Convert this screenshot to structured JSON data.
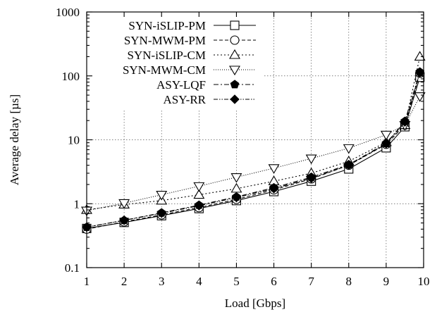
{
  "chart_data": {
    "type": "line",
    "xlabel": "Load [Gbps]",
    "ylabel": "Average delay [µs]",
    "xlim": [
      1,
      10
    ],
    "ylim": [
      0.1,
      1000
    ],
    "yscale": "log",
    "grid": true,
    "legend_position": "top-left",
    "x_ticks": [
      1,
      2,
      3,
      4,
      5,
      6,
      7,
      8,
      9,
      10
    ],
    "x_tick_labels": [
      "1",
      "2",
      "3",
      "4",
      "5",
      "6",
      "7",
      "8",
      "9",
      "10"
    ],
    "y_ticks": [
      0.1,
      1,
      10,
      100,
      1000
    ],
    "y_tick_labels": [
      "0.1",
      "1",
      "10",
      "100",
      "1000"
    ],
    "series": [
      {
        "name": "SYN-iSLIP-PM",
        "marker": "square-open",
        "dash": "solid",
        "x": [
          1,
          2,
          3,
          4,
          5,
          6,
          7,
          8,
          9,
          9.5,
          9.9
        ],
        "y": [
          0.41,
          0.51,
          0.65,
          0.84,
          1.12,
          1.55,
          2.25,
          3.5,
          7.5,
          16,
          95
        ]
      },
      {
        "name": "SYN-MWM-PM",
        "marker": "circle-open",
        "dash": "dashed",
        "x": [
          1,
          2,
          3,
          4,
          5,
          6,
          7,
          8,
          9,
          9.5,
          9.9
        ],
        "y": [
          0.4,
          0.52,
          0.67,
          0.87,
          1.17,
          1.65,
          2.45,
          4.0,
          8.5,
          17,
          110
        ]
      },
      {
        "name": "SYN-iSLIP-CM",
        "marker": "triangle-up-open",
        "dash": "dotted",
        "x": [
          1,
          2,
          3,
          4,
          5,
          6,
          7,
          8,
          9,
          9.5,
          9.9
        ],
        "y": [
          0.8,
          0.97,
          1.12,
          1.38,
          1.72,
          2.25,
          3.0,
          4.6,
          9.2,
          17,
          200
        ]
      },
      {
        "name": "SYN-MWM-CM",
        "marker": "triangle-down-open",
        "dash": "fine-dotted",
        "x": [
          1,
          2,
          3,
          4,
          5,
          6,
          7,
          8,
          9,
          9.5,
          9.9
        ],
        "y": [
          0.78,
          1.02,
          1.38,
          1.88,
          2.6,
          3.6,
          5.1,
          7.4,
          12,
          17,
          48
        ]
      },
      {
        "name": "ASY-LQF",
        "marker": "pentagon-filled",
        "dash": "dash-dot",
        "x": [
          1,
          2,
          3,
          4,
          5,
          6,
          7,
          8,
          9,
          9.5,
          9.9
        ],
        "y": [
          0.43,
          0.55,
          0.72,
          0.95,
          1.28,
          1.78,
          2.6,
          4.1,
          8.8,
          19.5,
          115
        ]
      },
      {
        "name": "ASY-RR",
        "marker": "diamond-filled",
        "dash": "dash-dot-dot",
        "x": [
          1,
          2,
          3,
          4,
          5,
          6,
          7,
          8,
          9,
          9.5,
          9.9
        ],
        "y": [
          0.43,
          0.55,
          0.71,
          0.93,
          1.25,
          1.72,
          2.5,
          4.0,
          8.7,
          19,
          112
        ]
      }
    ]
  }
}
